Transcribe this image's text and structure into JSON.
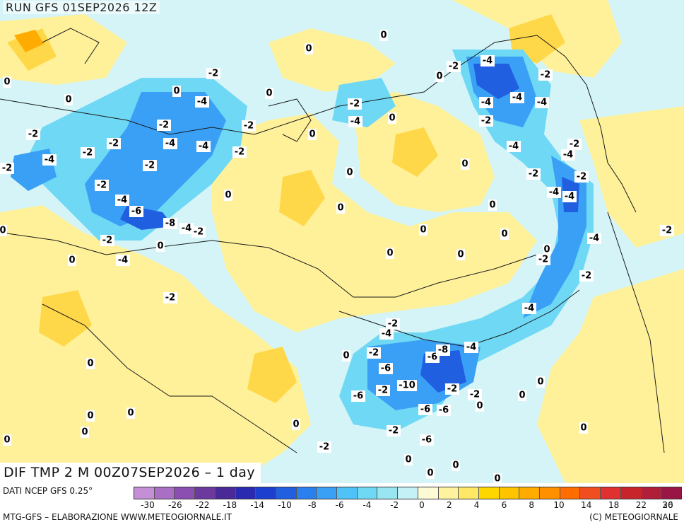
{
  "header": {
    "run_title": "RUN GFS 01SEP2026 12Z",
    "variable_title": "DIF TMP 2 M 00Z07SEP2026 – 1 day"
  },
  "footer": {
    "source": "DATI NCEP GFS 0.25°",
    "credit_left": "MTG-GFS – ELABORAZIONE WWW.METEOGIORNALE.IT",
    "credit_right": "(C) METEOGIORNALE"
  },
  "legend": {
    "colors": [
      "#c48fd6",
      "#a86fc4",
      "#8a4fb0",
      "#6b3a9c",
      "#4a2a96",
      "#2a2ab0",
      "#1c3fd0",
      "#1f5fe0",
      "#2b80f0",
      "#3aa0f5",
      "#4fc3f7",
      "#6fd8f5",
      "#99e6f2",
      "#c4f1f6",
      "#fdfbd6",
      "#fff3a0",
      "#ffe866",
      "#ffd700",
      "#ffc400",
      "#ffab00",
      "#ff9100",
      "#ff6d00",
      "#f04e1e",
      "#e03030",
      "#c8242c",
      "#b01e3a",
      "#991545"
    ],
    "tick_labels": [
      "-30",
      "-26",
      "-22",
      "-18",
      "-14",
      "-10",
      "-8",
      "-6",
      "-4",
      "-2",
      "0",
      "2",
      "4",
      "6",
      "8",
      "10",
      "14",
      "18",
      "22",
      "26",
      "30"
    ]
  },
  "map": {
    "contour_labels": [
      "0",
      "0",
      "0",
      "0",
      "0",
      "0",
      "0",
      "0",
      "0",
      "0",
      "0",
      "0",
      "0",
      "0",
      "0",
      "0",
      "0",
      "0",
      "0",
      "0",
      "0",
      "0",
      "0",
      "0",
      "0",
      "0",
      "0",
      "0",
      "0",
      "0",
      "0",
      "0",
      "0",
      "0",
      "0",
      "0",
      "0",
      "-2",
      "-2",
      "-2",
      "-2",
      "-2",
      "-2",
      "-2",
      "-2",
      "-2",
      "-2",
      "-2",
      "-2",
      "-2",
      "-2",
      "-2",
      "-2",
      "-2",
      "-2",
      "-2",
      "-2",
      "-2",
      "-2",
      "-2",
      "-2",
      "-2",
      "-2",
      "-2",
      "-2",
      "-4",
      "-4",
      "-4",
      "-4",
      "-4",
      "-4",
      "-4",
      "-4",
      "-4",
      "-4",
      "-4",
      "-4",
      "-4",
      "-4",
      "-4",
      "-4",
      "-4",
      "-4",
      "-6",
      "-6",
      "-6",
      "-6",
      "-6",
      "-6",
      "-6",
      "-8",
      "-8",
      "-10",
      "-4",
      "-4",
      "-2",
      "-2"
    ]
  }
}
